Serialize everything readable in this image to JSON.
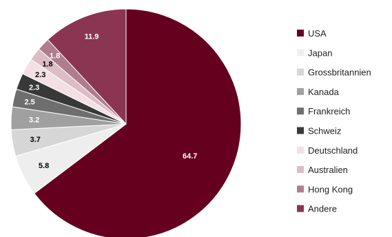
{
  "chart_data": {
    "type": "pie",
    "title": "",
    "legend_position": "right",
    "slices": [
      {
        "name": "USA",
        "value": 64.7,
        "label": "64.7",
        "color": "#65001f",
        "label_color": "#ffffff"
      },
      {
        "name": "Japan",
        "value": 5.8,
        "label": "5.8",
        "color": "#eeeeee",
        "label_color": "#000000"
      },
      {
        "name": "Grossbritannien",
        "value": 3.7,
        "label": "3.7",
        "color": "#d6d6d6",
        "label_color": "#000000"
      },
      {
        "name": "Kanada",
        "value": 3.2,
        "label": "3.2",
        "color": "#a0a0a0",
        "label_color": "#ffffff"
      },
      {
        "name": "Frankreich",
        "value": 2.5,
        "label": "2.5",
        "color": "#6e6e6e",
        "label_color": "#ffffff"
      },
      {
        "name": "Schweiz",
        "value": 2.3,
        "label": "2.3",
        "color": "#383838",
        "label_color": "#ffffff"
      },
      {
        "name": "Deutschland",
        "value": 2.3,
        "label": "2.3",
        "color": "#f2e0e4",
        "label_color": "#000000"
      },
      {
        "name": "Australien",
        "value": 1.8,
        "label": "1.8",
        "color": "#dcbcc5",
        "label_color": "#000000"
      },
      {
        "name": "Hong Kong",
        "value": 1.8,
        "label": "1.8",
        "color": "#b07d8e",
        "label_color": "#ffffff"
      },
      {
        "name": "Andere",
        "value": 11.9,
        "label": "11.9",
        "color": "#8a3552",
        "label_color": "#ffffff"
      }
    ]
  }
}
